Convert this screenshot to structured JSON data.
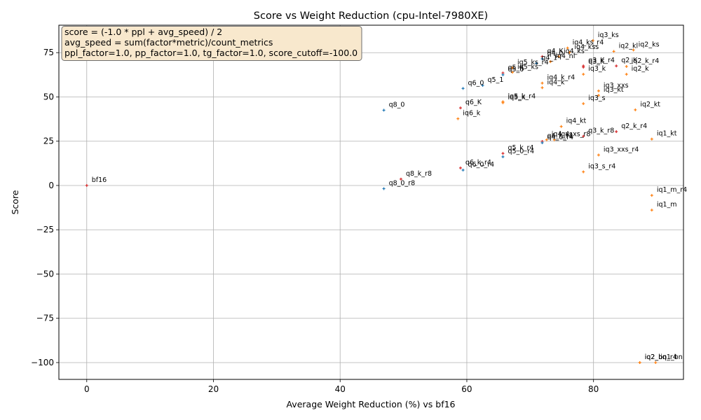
{
  "chart_data": {
    "type": "scatter",
    "title": "Score vs Weight Reduction (cpu-Intel-7980XE)",
    "xlabel": "Average Weight Reduction (%) vs bf16",
    "ylabel": "Score",
    "xlim": [
      -4.4,
      94.2
    ],
    "ylim": [
      -109.5,
      90.5
    ],
    "xticks": [
      0,
      20,
      40,
      60,
      80
    ],
    "yticks": [
      -100,
      -75,
      -50,
      -25,
      0,
      25,
      50,
      75
    ],
    "grid": true,
    "annotation_lines": [
      "score = (-1.0 * ppl + avg_speed) / 2",
      "avg_speed = sum(factor*metric)/count_metrics",
      "ppl_factor=1.0, pp_factor=1.0, tg_factor=1.0, score_cutoff=-100.0"
    ],
    "colors": {
      "red": "#d62728",
      "blue": "#1f77b4",
      "orange": "#ff7f0e"
    },
    "points": [
      {
        "label": "bf16",
        "x": 0,
        "y": 0,
        "color": "red"
      },
      {
        "label": "q8_0",
        "x": 46.9,
        "y": 42.5,
        "color": "blue"
      },
      {
        "label": "q8_0_r8",
        "x": 46.9,
        "y": -1.8,
        "color": "blue"
      },
      {
        "label": "q8_k_r8",
        "x": 49.6,
        "y": 3.6,
        "color": "red"
      },
      {
        "label": "iq6_k",
        "x": 58.6,
        "y": 37.7,
        "color": "orange"
      },
      {
        "label": "q6_K",
        "x": 59.0,
        "y": 43.8,
        "color": "red"
      },
      {
        "label": "q6_k_r4",
        "x": 59.0,
        "y": 9.9,
        "color": "red"
      },
      {
        "label": "q6_0_r4",
        "x": 59.4,
        "y": 8.7,
        "color": "blue"
      },
      {
        "label": "q6_0",
        "x": 59.4,
        "y": 54.8,
        "color": "blue"
      },
      {
        "label": "q5_1",
        "x": 62.5,
        "y": 56.5,
        "color": "blue"
      },
      {
        "label": "q5_K",
        "x": 65.7,
        "y": 63.5,
        "color": "red"
      },
      {
        "label": "q5_0",
        "x": 65.7,
        "y": 62.5,
        "color": "blue"
      },
      {
        "label": "iq5_k_r4",
        "x": 65.7,
        "y": 47.3,
        "color": "orange"
      },
      {
        "label": "iq5_k",
        "x": 65.7,
        "y": 46.7,
        "color": "orange"
      },
      {
        "label": "q5_k_r4",
        "x": 65.7,
        "y": 18.1,
        "color": "red"
      },
      {
        "label": "q5_0_r4",
        "x": 65.7,
        "y": 16.2,
        "color": "blue"
      },
      {
        "label": "iq5_ks",
        "x": 67.2,
        "y": 63.9,
        "color": "orange"
      },
      {
        "label": "iq5_ks_r4",
        "x": 67.2,
        "y": 66.4,
        "color": "orange"
      },
      {
        "label": "q4_1",
        "x": 71.0,
        "y": 69.0,
        "color": "blue"
      },
      {
        "label": "q4_K",
        "x": 71.9,
        "y": 72.8,
        "color": "red"
      },
      {
        "label": "q4_0",
        "x": 71.9,
        "y": 71.5,
        "color": "blue"
      },
      {
        "label": "iq4_k_r4",
        "x": 71.9,
        "y": 57.8,
        "color": "orange"
      },
      {
        "label": "iq4_k",
        "x": 71.9,
        "y": 55.2,
        "color": "orange"
      },
      {
        "label": "q4_k_r4",
        "x": 71.9,
        "y": 24.9,
        "color": "red"
      },
      {
        "label": "q4_0_r4",
        "x": 71.9,
        "y": 24.1,
        "color": "blue"
      },
      {
        "label": "iq4_xs",
        "x": 72.6,
        "y": 25.8,
        "color": "orange"
      },
      {
        "label": "iq4_nl",
        "x": 73.2,
        "y": 69.9,
        "color": "orange"
      },
      {
        "label": "iq4_xs_r8",
        "x": 73.8,
        "y": 25.8,
        "color": "orange"
      },
      {
        "label": "iq4_ks",
        "x": 74.5,
        "y": 72.8,
        "color": "orange"
      },
      {
        "label": "iq4_kt",
        "x": 74.9,
        "y": 33.3,
        "color": "orange"
      },
      {
        "label": "iq4_ks_r4",
        "x": 75.9,
        "y": 77.6,
        "color": "orange"
      },
      {
        "label": "iq4_kss",
        "x": 76.2,
        "y": 75.1,
        "color": "orange"
      },
      {
        "label": "q3_K_r4",
        "x": 78.4,
        "y": 67.5,
        "color": "red"
      },
      {
        "label": "q3_K",
        "x": 78.4,
        "y": 66.8,
        "color": "red"
      },
      {
        "label": "iq3_k",
        "x": 78.4,
        "y": 62.8,
        "color": "orange"
      },
      {
        "label": "iq3_s",
        "x": 78.4,
        "y": 46.2,
        "color": "orange"
      },
      {
        "label": "q3_k_r8",
        "x": 78.4,
        "y": 27.8,
        "color": "red"
      },
      {
        "label": "iq3_s_r4",
        "x": 78.4,
        "y": 7.7,
        "color": "orange"
      },
      {
        "label": "iq3_ks",
        "x": 79.9,
        "y": 81.8,
        "color": "orange"
      },
      {
        "label": "iq3_xxs",
        "x": 80.8,
        "y": 53.4,
        "color": "orange"
      },
      {
        "label": "iq3_kt",
        "x": 80.8,
        "y": 50.9,
        "color": "orange"
      },
      {
        "label": "iq3_xxs_r4",
        "x": 80.8,
        "y": 17.2,
        "color": "orange"
      },
      {
        "label": "iq2_kl",
        "x": 83.2,
        "y": 75.7,
        "color": "orange"
      },
      {
        "label": "q2_K",
        "x": 83.6,
        "y": 67.5,
        "color": "red"
      },
      {
        "label": "q2_k_r4",
        "x": 83.6,
        "y": 30.4,
        "color": "red"
      },
      {
        "label": "iq2_k",
        "x": 85.2,
        "y": 62.8,
        "color": "orange"
      },
      {
        "label": "iq2_k_r4",
        "x": 85.2,
        "y": 67.2,
        "color": "orange"
      },
      {
        "label": "iq2_ks",
        "x": 86.3,
        "y": 76.5,
        "color": "orange"
      },
      {
        "label": "iq2_kt",
        "x": 86.6,
        "y": 42.7,
        "color": "orange"
      },
      {
        "label": "iq2_bn",
        "x": 87.3,
        "y": -100,
        "color": "orange"
      },
      {
        "label": "iq2_bn_r4",
        "x": 87.3,
        "y": -100,
        "color": "orange"
      },
      {
        "label": "iq1_kt",
        "x": 89.2,
        "y": 26.2,
        "color": "orange"
      },
      {
        "label": "iq1_m_r4",
        "x": 89.2,
        "y": -5.6,
        "color": "orange"
      },
      {
        "label": "iq1_m",
        "x": 89.2,
        "y": -13.9,
        "color": "orange"
      },
      {
        "label": "iq1_bn",
        "x": 89.8,
        "y": -100,
        "color": "orange"
      }
    ]
  }
}
